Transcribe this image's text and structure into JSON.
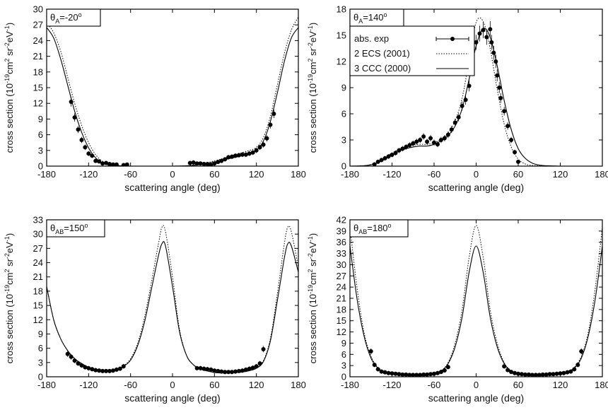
{
  "chart_data": [
    {
      "type": "line",
      "panel_label": {
        "theta": "θ",
        "sub": "A",
        "value": "=-20",
        "sup": "o"
      },
      "xlabel": "scattering angle (deg)",
      "ylabel": {
        "prefix": "cross section (10",
        "exp1": "-19",
        "mid1": "cm",
        "exp2": "2",
        "mid2": " sr",
        "exp3": "-2",
        "mid3": "eV",
        "exp4": "-1",
        "suffix": ")"
      },
      "xlim": [
        -180,
        180
      ],
      "ylim": [
        0,
        30
      ],
      "xticks": [
        "-180",
        "-120",
        "-60",
        "0",
        "60",
        "120",
        "180"
      ],
      "yticks": [
        "0",
        "3",
        "6",
        "9",
        "12",
        "15",
        "18",
        "21",
        "24",
        "27",
        "30"
      ],
      "legend": null,
      "series": [
        {
          "style": "solid",
          "x": [
            -180,
            -170,
            -160,
            -150,
            -140,
            -130,
            -120,
            -110,
            -100,
            -90,
            -80,
            -60,
            -40,
            -20,
            0,
            20,
            40,
            60,
            80,
            100,
            110,
            120,
            130,
            140,
            150,
            160,
            170,
            180
          ],
          "y": [
            26.5,
            24.5,
            20.5,
            15.5,
            10.5,
            6.5,
            3.5,
            1.6,
            0.6,
            0.2,
            0.1,
            0,
            0,
            0,
            0,
            0.05,
            0.3,
            0.8,
            1.4,
            2.0,
            2.4,
            3.0,
            4.8,
            8.5,
            14,
            20,
            24.5,
            26.5
          ]
        },
        {
          "style": "dotted",
          "x": [
            -180,
            -170,
            -160,
            -150,
            -140,
            -130,
            -120,
            -110,
            -100,
            -90,
            -80,
            -60,
            -40,
            -20,
            0,
            20,
            40,
            60,
            80,
            100,
            110,
            120,
            130,
            140,
            150,
            160,
            170,
            180
          ],
          "y": [
            27.5,
            25.5,
            22,
            17,
            12,
            7.8,
            4.5,
            2.2,
            0.9,
            0.3,
            0.15,
            0,
            0,
            0,
            0,
            0.1,
            0.4,
            1.0,
            1.8,
            2.6,
            3.0,
            3.6,
            5.5,
            9.5,
            15.5,
            21.5,
            26,
            28.5
          ]
        },
        {
          "style": "points",
          "x": [
            -145,
            -140,
            -135,
            -130,
            -125,
            -120,
            -115,
            -110,
            -105,
            -100,
            -95,
            -90,
            -85,
            -80,
            -70,
            -65,
            25,
            30,
            35,
            40,
            45,
            50,
            55,
            60,
            65,
            70,
            75,
            80,
            85,
            90,
            95,
            100,
            105,
            110,
            115,
            120,
            125,
            130,
            135,
            140,
            145
          ],
          "y": [
            12.3,
            9.3,
            7.0,
            5.0,
            3.6,
            2.4,
            2.0,
            1.0,
            0.9,
            0.5,
            0.6,
            0.4,
            0.3,
            0.3,
            0.2,
            0.3,
            0.6,
            0.7,
            0.5,
            0.5,
            0.4,
            0.4,
            0.2,
            0.5,
            0.8,
            1.0,
            1.3,
            1.7,
            1.8,
            2.0,
            2.1,
            2.2,
            2.2,
            2.4,
            2.6,
            3.0,
            3.6,
            4.1,
            5.3,
            7.9,
            10.0
          ]
        }
      ]
    },
    {
      "type": "line",
      "panel_label": {
        "theta": "θ",
        "sub": "A",
        "value": "=140",
        "sup": "o"
      },
      "xlabel": "scattering angle (deg)",
      "ylabel": {
        "prefix": "cross section (10",
        "exp1": "-19",
        "mid1": "cm",
        "exp2": "2",
        "mid2": " sr",
        "exp3": "-2",
        "mid3": "eV",
        "exp4": "-1",
        "suffix": ")"
      },
      "xlim": [
        -180,
        180
      ],
      "ylim": [
        0,
        18
      ],
      "xticks": [
        "-180",
        "-120",
        "-60",
        "0",
        "60",
        "120",
        "180"
      ],
      "yticks": [
        "0",
        "3",
        "6",
        "9",
        "12",
        "15",
        "18"
      ],
      "legend": [
        {
          "label": "abs. exp",
          "style": "points"
        },
        {
          "label": "2 ECS (2001)",
          "style": "dotted"
        },
        {
          "label": "3 CCC (2000)",
          "style": "solid"
        }
      ],
      "series": [
        {
          "style": "solid",
          "x": [
            -180,
            -160,
            -150,
            -140,
            -130,
            -120,
            -110,
            -100,
            -90,
            -80,
            -70,
            -60,
            -50,
            -40,
            -30,
            -20,
            -10,
            0,
            10,
            20,
            30,
            40,
            50,
            60,
            70,
            80,
            90,
            100,
            120,
            150,
            180
          ],
          "y": [
            0,
            0.05,
            0.15,
            0.4,
            0.8,
            1.3,
            1.7,
            2.0,
            2.2,
            2.3,
            2.3,
            2.5,
            2.9,
            3.5,
            4.6,
            6.6,
            10,
            13.8,
            15.8,
            14.8,
            11.5,
            7.5,
            4.2,
            2.0,
            0.9,
            0.35,
            0.12,
            0.05,
            0,
            0,
            0
          ]
        },
        {
          "style": "dotted",
          "x": [
            -180,
            -160,
            -150,
            -140,
            -130,
            -120,
            -110,
            -100,
            -90,
            -80,
            -70,
            -60,
            -50,
            -40,
            -30,
            -20,
            -10,
            0,
            10,
            20,
            30,
            40,
            50,
            60,
            70,
            80,
            100,
            120,
            180
          ],
          "y": [
            0,
            0.05,
            0.2,
            0.5,
            1.0,
            1.5,
            1.9,
            2.2,
            2.4,
            2.5,
            2.5,
            2.7,
            3.1,
            3.8,
            5.2,
            7.8,
            12.2,
            16.5,
            16.6,
            13.5,
            8.8,
            4.8,
            2.2,
            0.8,
            0.25,
            0.08,
            0,
            0,
            0
          ]
        },
        {
          "style": "points",
          "x": [
            -145,
            -140,
            -135,
            -130,
            -125,
            -120,
            -115,
            -110,
            -105,
            -100,
            -95,
            -90,
            -85,
            -80,
            -75,
            -70,
            -65,
            -60,
            -55,
            -50,
            -45,
            -40,
            -35,
            -30,
            -25,
            -20,
            -15,
            -10,
            -5,
            0,
            5,
            10,
            15,
            20,
            22,
            25,
            28,
            30,
            33,
            35,
            40,
            45,
            50,
            55,
            60
          ],
          "y": [
            0.2,
            0.5,
            0.7,
            0.9,
            1.1,
            1.3,
            1.5,
            1.8,
            2.0,
            2.2,
            2.4,
            2.6,
            2.8,
            3.0,
            3.4,
            2.8,
            3.2,
            2.7,
            2.5,
            3.0,
            3.2,
            3.6,
            4.2,
            5.0,
            5.6,
            6.9,
            7.6,
            9.2,
            11.5,
            14.2,
            15.2,
            15.6,
            14.8,
            15.7,
            14.2,
            13.0,
            12.0,
            10.4,
            9.0,
            7.8,
            6.3,
            4.6,
            3.0,
            1.6,
            0.5
          ]
        }
      ]
    },
    {
      "type": "line",
      "panel_label": {
        "theta": "θ",
        "sub": "AB",
        "value": "=150",
        "sup": "o"
      },
      "xlabel": "scattering angle (deg)",
      "ylabel": {
        "prefix": "cross section (10",
        "exp1": "-19",
        "mid1": "cm",
        "exp2": "2",
        "mid2": " sr",
        "exp3": "-2",
        "mid3": "eV",
        "exp4": "-1",
        "suffix": ")"
      },
      "xlim": [
        -180,
        180
      ],
      "ylim": [
        0,
        33
      ],
      "xticks": [
        "-180",
        "-120",
        "-60",
        "0",
        "60",
        "120",
        "180"
      ],
      "yticks": [
        "0",
        "3",
        "6",
        "9",
        "12",
        "15",
        "18",
        "21",
        "24",
        "27",
        "30",
        "33"
      ],
      "legend": null,
      "series": [
        {
          "style": "solid",
          "x": [
            -180,
            -170,
            -160,
            -150,
            -140,
            -130,
            -120,
            -110,
            -100,
            -90,
            -80,
            -70,
            -60,
            -50,
            -40,
            -30,
            -20,
            -15,
            -10,
            0,
            10,
            20,
            30,
            40,
            50,
            60,
            70,
            80,
            90,
            100,
            110,
            120,
            130,
            140,
            150,
            160,
            165,
            170,
            180
          ],
          "y": [
            19,
            12,
            8,
            5.5,
            3.8,
            2.8,
            2.0,
            1.5,
            1.3,
            1.3,
            1.5,
            2.2,
            3.5,
            6.5,
            11.5,
            18.5,
            25.5,
            28,
            27.5,
            19,
            9.5,
            4.5,
            2.5,
            1.6,
            1.2,
            0.9,
            0.8,
            0.8,
            0.9,
            1.0,
            1.3,
            1.8,
            3.2,
            7.5,
            16,
            25,
            28,
            27.5,
            22
          ]
        },
        {
          "style": "dotted",
          "x": [
            -180,
            -170,
            -160,
            -150,
            -140,
            -130,
            -120,
            -110,
            -100,
            -90,
            -80,
            -70,
            -60,
            -50,
            -40,
            -30,
            -20,
            -15,
            -10,
            0,
            10,
            20,
            30,
            40,
            50,
            60,
            70,
            80,
            90,
            100,
            110,
            120,
            130,
            140,
            150,
            160,
            165,
            170,
            180
          ],
          "y": [
            19,
            12,
            8,
            5.5,
            3.8,
            2.8,
            2.0,
            1.5,
            1.3,
            1.3,
            1.5,
            2.3,
            3.8,
            7,
            12.5,
            20,
            28,
            31.5,
            30.5,
            21,
            10,
            4.5,
            2.5,
            1.6,
            1.2,
            0.9,
            0.8,
            0.8,
            0.9,
            1.0,
            1.3,
            1.8,
            3.4,
            8,
            17.5,
            28,
            31.5,
            30.5,
            23
          ]
        },
        {
          "style": "points",
          "x": [
            -150,
            -145,
            -140,
            -135,
            -130,
            -125,
            -120,
            -115,
            -110,
            -105,
            -100,
            -95,
            -90,
            -85,
            -80,
            -75,
            -70,
            35,
            40,
            45,
            50,
            55,
            60,
            65,
            70,
            75,
            80,
            85,
            90,
            95,
            100,
            105,
            110,
            115,
            120,
            125,
            130
          ],
          "y": [
            4.8,
            4.2,
            3.4,
            2.8,
            2.4,
            2.0,
            1.8,
            1.6,
            1.4,
            1.3,
            1.2,
            1.2,
            1.2,
            1.3,
            1.5,
            1.7,
            2.2,
            1.8,
            1.8,
            1.7,
            1.6,
            1.5,
            1.3,
            1.2,
            1.1,
            1.0,
            1.0,
            1.0,
            1.1,
            1.2,
            1.3,
            1.5,
            1.7,
            1.9,
            2.2,
            2.8,
            5.8
          ]
        }
      ]
    },
    {
      "type": "line",
      "panel_label": {
        "theta": "θ",
        "sub": "AB",
        "value": "=180",
        "sup": "o"
      },
      "xlabel": "scattering angle (deg)",
      "ylabel": {
        "prefix": "cross section (10",
        "exp1": "-19",
        "mid1": "cm",
        "exp2": "2",
        "mid2": " sr",
        "exp3": "-2",
        "mid3": "eV",
        "exp4": "-1",
        "suffix": ")"
      },
      "xlim": [
        -180,
        180
      ],
      "ylim": [
        0,
        42
      ],
      "xticks": [
        "-180",
        "-120",
        "-60",
        "0",
        "60",
        "120",
        "180"
      ],
      "yticks": [
        "0",
        "3",
        "6",
        "9",
        "12",
        "15",
        "18",
        "21",
        "24",
        "27",
        "30",
        "33",
        "36",
        "39",
        "42"
      ],
      "legend": null,
      "series": [
        {
          "style": "solid",
          "x": [
            -180,
            -170,
            -160,
            -150,
            -140,
            -130,
            -120,
            -110,
            -100,
            -90,
            -80,
            -70,
            -60,
            -50,
            -40,
            -30,
            -20,
            -10,
            0,
            10,
            20,
            30,
            40,
            50,
            60,
            70,
            80,
            90,
            100,
            110,
            120,
            130,
            140,
            150,
            160,
            170,
            180
          ],
          "y": [
            35,
            21,
            11,
            5,
            2.3,
            1.3,
            0.9,
            0.6,
            0.4,
            0.3,
            0.3,
            0.4,
            0.8,
            1.5,
            3.5,
            8,
            16,
            28,
            35,
            28,
            16,
            8,
            3.5,
            1.5,
            0.8,
            0.4,
            0.3,
            0.3,
            0.4,
            0.6,
            0.9,
            1.3,
            2.3,
            5,
            11,
            21,
            35
          ]
        },
        {
          "style": "dotted",
          "x": [
            -180,
            -170,
            -160,
            -150,
            -140,
            -130,
            -120,
            -110,
            -100,
            -90,
            -80,
            -70,
            -60,
            -50,
            -40,
            -30,
            -20,
            -10,
            0,
            10,
            20,
            30,
            40,
            50,
            60,
            70,
            80,
            90,
            100,
            110,
            120,
            130,
            140,
            150,
            160,
            170,
            180
          ],
          "y": [
            40,
            24,
            12,
            5.5,
            2.5,
            1.4,
            0.9,
            0.6,
            0.4,
            0.3,
            0.3,
            0.4,
            0.8,
            1.6,
            3.8,
            9,
            18,
            32,
            40.5,
            32,
            18,
            9,
            3.8,
            1.6,
            0.8,
            0.4,
            0.3,
            0.3,
            0.4,
            0.6,
            0.9,
            1.4,
            2.5,
            5.5,
            12,
            24,
            40
          ]
        },
        {
          "style": "points",
          "x": [
            -150,
            -145,
            -140,
            -135,
            -130,
            -125,
            -120,
            -115,
            -110,
            -105,
            -100,
            -95,
            -90,
            -85,
            -80,
            -75,
            -70,
            -65,
            -60,
            -55,
            -50,
            -45,
            -40,
            40,
            45,
            50,
            55,
            60,
            65,
            70,
            75,
            80,
            85,
            90,
            95,
            100,
            105,
            110,
            115,
            120,
            125,
            130,
            135,
            140,
            145,
            150
          ],
          "y": [
            6.8,
            3.2,
            2.0,
            1.4,
            1.2,
            1.0,
            0.9,
            0.8,
            0.7,
            0.6,
            0.6,
            0.5,
            0.5,
            0.5,
            0.5,
            0.6,
            0.6,
            0.7,
            0.8,
            1.0,
            1.3,
            1.7,
            2.6,
            2.8,
            1.8,
            1.3,
            1.0,
            0.8,
            0.7,
            0.6,
            0.6,
            0.5,
            0.5,
            0.5,
            0.6,
            0.6,
            0.7,
            0.7,
            0.8,
            0.9,
            1.0,
            1.2,
            1.4,
            2.0,
            3.2,
            6.8
          ]
        }
      ]
    }
  ]
}
